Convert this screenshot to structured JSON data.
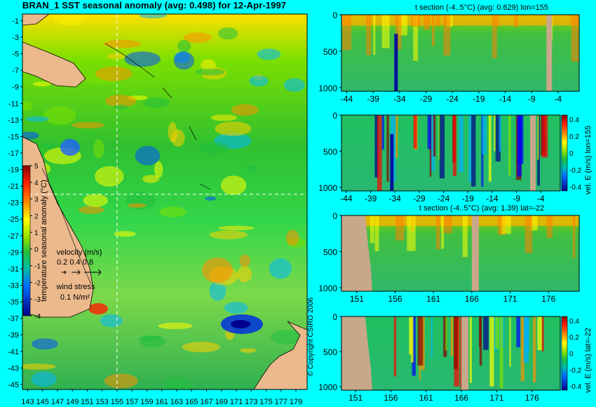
{
  "title": "BRAN_1 SST seasonal anomaly (avg: 0.498) for 12-Apr-1997",
  "colors": {
    "background": "#00FFFF",
    "land": "#EBB98C",
    "section_land": "#C8A88A"
  },
  "map": {
    "y_ticks": [
      "-1",
      "-3",
      "-5",
      "-7",
      "-9",
      "-11",
      "-13",
      "-15",
      "-17",
      "-19",
      "-21",
      "-23",
      "-25",
      "-27",
      "-29",
      "-31",
      "-33",
      "-35",
      "-37",
      "-39",
      "-41",
      "-43",
      "-45"
    ],
    "x_ticks": [
      "143",
      "145",
      "147",
      "149",
      "151",
      "153",
      "155",
      "157",
      "159",
      "161",
      "163",
      "165",
      "167",
      "169",
      "171",
      "173",
      "175",
      "177",
      "179"
    ],
    "colorbar": {
      "label": "temperature seasonal anomaly (°C)",
      "ticks": [
        "5",
        "4",
        "3",
        "2",
        "1",
        "0",
        "-1",
        "-2",
        "-3",
        "-4"
      ],
      "range": [
        -4,
        5
      ]
    },
    "velocity_legend": {
      "title": "velocity (m/s)",
      "values": "0.2 0.4 0.8"
    },
    "wind_legend": {
      "title": "wind stress",
      "value": "0.1 N/m²"
    },
    "copyright": "© Copyright CSIRO 2006",
    "crosshair": {
      "lon": 155,
      "lat": -22
    }
  },
  "sections": [
    {
      "title": "t section (-4..5°C) (avg: 0.629) lon=155",
      "y_ticks": [
        "0",
        "500",
        "1000"
      ],
      "x_ticks": [
        "-44",
        "-39",
        "-34",
        "-29",
        "-24",
        "-19",
        "-14",
        "-9",
        "-4"
      ],
      "side_label": "",
      "colorbar_ticks": []
    },
    {
      "title": "",
      "y_ticks": [
        "0",
        "500",
        "1000"
      ],
      "x_ticks": [
        "-44",
        "-39",
        "-34",
        "-29",
        "-24",
        "-19",
        "-14",
        "-9",
        "-4"
      ],
      "side_label": "vel. E (m/s) lon=155",
      "colorbar_ticks": [
        "0.4",
        "0.2",
        "0",
        "-0.2",
        "-0.4"
      ]
    },
    {
      "title": "t section (-4..5°C) (avg: 1.39) lat=-22",
      "y_ticks": [
        "0",
        "500",
        "1000"
      ],
      "x_ticks": [
        "151",
        "156",
        "161",
        "166",
        "171",
        "176"
      ],
      "side_label": "",
      "colorbar_ticks": []
    },
    {
      "title": "",
      "y_ticks": [
        "0",
        "500",
        "1000"
      ],
      "x_ticks": [
        "151",
        "156",
        "161",
        "166",
        "171",
        "176"
      ],
      "side_label": "vel. E (m/s) lat=-22",
      "colorbar_ticks": [
        "0.4",
        "0.2",
        "0",
        "-0.2",
        "-0.4"
      ]
    }
  ],
  "chart_data": [
    {
      "type": "heatmap",
      "title": "BRAN_1 SST seasonal anomaly (avg: 0.498) for 12-Apr-1997",
      "xlim": [
        143,
        180
      ],
      "ylim": [
        -45,
        0
      ],
      "zlim": [
        -4,
        5
      ]
    },
    {
      "type": "heatmap",
      "title": "t section (-4..5°C) (avg: 0.629) lon=155",
      "xlim": [
        -45,
        0
      ],
      "ylim": [
        1050,
        0
      ],
      "zlim": [
        -4,
        5
      ]
    },
    {
      "type": "heatmap",
      "title": "",
      "xlim": [
        -45,
        0
      ],
      "ylim": [
        1050,
        0
      ],
      "zlim": [
        -0.4,
        0.4
      ]
    },
    {
      "type": "heatmap",
      "title": "t section (-4..5°C) (avg: 1.39) lat=-22",
      "xlim": [
        149,
        180
      ],
      "ylim": [
        1050,
        0
      ],
      "zlim": [
        -4,
        5
      ]
    },
    {
      "type": "heatmap",
      "title": "",
      "xlim": [
        149,
        180
      ],
      "ylim": [
        1050,
        0
      ],
      "zlim": [
        -0.4,
        0.4
      ]
    }
  ]
}
